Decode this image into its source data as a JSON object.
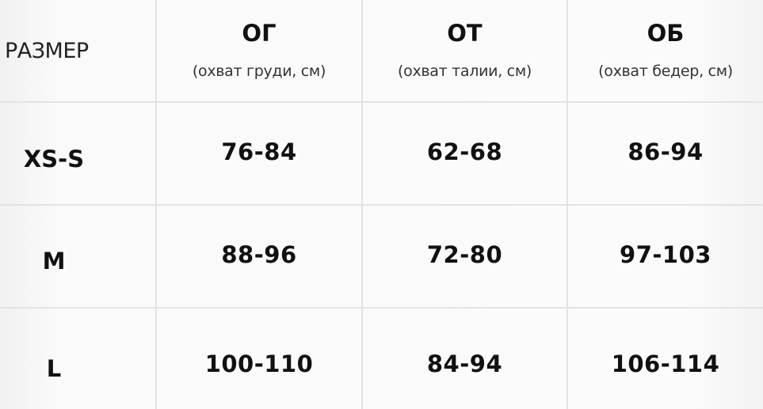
{
  "header": {
    "size_label": "РАЗМЕР",
    "columns": [
      {
        "title": "ОГ",
        "subtitle": "(охват груди, см)"
      },
      {
        "title": "ОТ",
        "subtitle": "(охват талии, см)"
      },
      {
        "title": "ОБ",
        "subtitle": "(охват бедер, см)"
      }
    ]
  },
  "rows": [
    {
      "size": "XS-S",
      "values": [
        "76-84",
        "62-68",
        "86-94"
      ]
    },
    {
      "size": "M",
      "values": [
        "88-96",
        "72-80",
        "97-103"
      ]
    },
    {
      "size": "L",
      "values": [
        "100-110",
        "84-94",
        "106-114"
      ]
    }
  ]
}
